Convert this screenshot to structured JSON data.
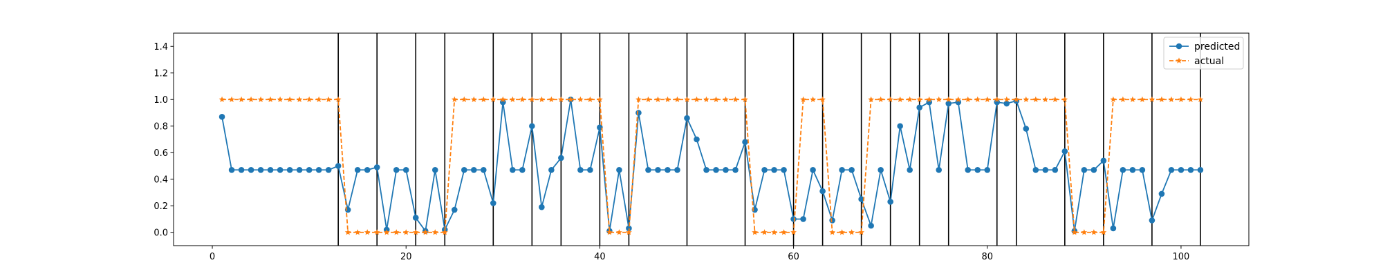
{
  "chart_data": {
    "type": "line",
    "title": "",
    "xlabel": "",
    "ylabel": "",
    "xlim": [
      -4,
      107
    ],
    "ylim": [
      -0.1,
      1.5
    ],
    "x_ticks": [
      0,
      20,
      40,
      60,
      80,
      100
    ],
    "y_ticks": [
      0.0,
      0.2,
      0.4,
      0.6,
      0.8,
      1.0,
      1.2,
      1.4
    ],
    "y_tick_labels": [
      "0.0",
      "0.2",
      "0.4",
      "0.6",
      "0.8",
      "1.0",
      "1.2",
      "1.4"
    ],
    "grid": false,
    "legend_position": "top-right",
    "vertical_lines": [
      13,
      17,
      21,
      24,
      29,
      33,
      36,
      40,
      43,
      49,
      55,
      60,
      63,
      67,
      70,
      73,
      76,
      81,
      83,
      88,
      92,
      97,
      102
    ],
    "series": [
      {
        "name": "predicted",
        "color": "#1f77b4",
        "marker": "circle",
        "line_style": "solid",
        "x": [
          1,
          2,
          3,
          4,
          5,
          6,
          7,
          8,
          9,
          10,
          11,
          12,
          13,
          14,
          15,
          16,
          17,
          18,
          19,
          20,
          21,
          22,
          23,
          24,
          25,
          26,
          27,
          28,
          29,
          30,
          31,
          32,
          33,
          34,
          35,
          36,
          37,
          38,
          39,
          40,
          41,
          42,
          43,
          44,
          45,
          46,
          47,
          48,
          49,
          50,
          51,
          52,
          53,
          54,
          55,
          56,
          57,
          58,
          59,
          60,
          61,
          62,
          63,
          64,
          65,
          66,
          67,
          68,
          69,
          70,
          71,
          72,
          73,
          74,
          75,
          76,
          77,
          78,
          79,
          80,
          81,
          82,
          83,
          84,
          85,
          86,
          87,
          88,
          89,
          90,
          91,
          92,
          93,
          94,
          95,
          96,
          97,
          98,
          99,
          100,
          101,
          102
        ],
        "values": [
          0.87,
          0.47,
          0.47,
          0.47,
          0.47,
          0.47,
          0.47,
          0.47,
          0.47,
          0.47,
          0.47,
          0.47,
          0.5,
          0.17,
          0.47,
          0.47,
          0.49,
          0.02,
          0.47,
          0.47,
          0.11,
          0.01,
          0.47,
          0.02,
          0.17,
          0.47,
          0.47,
          0.47,
          0.22,
          0.98,
          0.47,
          0.47,
          0.8,
          0.19,
          0.47,
          0.56,
          1.0,
          0.47,
          0.47,
          0.79,
          0.01,
          0.47,
          0.03,
          0.9,
          0.47,
          0.47,
          0.47,
          0.47,
          0.86,
          0.7,
          0.47,
          0.47,
          0.47,
          0.47,
          0.68,
          0.17,
          0.47,
          0.47,
          0.47,
          0.1,
          0.1,
          0.47,
          0.31,
          0.09,
          0.47,
          0.47,
          0.25,
          0.05,
          0.47,
          0.23,
          0.8,
          0.47,
          0.94,
          0.98,
          0.47,
          0.97,
          0.98,
          0.47,
          0.47,
          0.47,
          0.98,
          0.97,
          0.99,
          0.78,
          0.47,
          0.47,
          0.47,
          0.61,
          0.01,
          0.47,
          0.47,
          0.54,
          0.03,
          0.47,
          0.47,
          0.47,
          0.09,
          0.29,
          0.47,
          0.47,
          0.47,
          0.47
        ]
      },
      {
        "name": "actual",
        "color": "#ff7f0e",
        "marker": "star",
        "line_style": "dashed",
        "x": [
          1,
          2,
          3,
          4,
          5,
          6,
          7,
          8,
          9,
          10,
          11,
          12,
          13,
          14,
          15,
          16,
          17,
          18,
          19,
          20,
          21,
          22,
          23,
          24,
          25,
          26,
          27,
          28,
          29,
          30,
          31,
          32,
          33,
          34,
          35,
          36,
          37,
          38,
          39,
          40,
          41,
          42,
          43,
          44,
          45,
          46,
          47,
          48,
          49,
          50,
          51,
          52,
          53,
          54,
          55,
          56,
          57,
          58,
          59,
          60,
          61,
          62,
          63,
          64,
          65,
          66,
          67,
          68,
          69,
          70,
          71,
          72,
          73,
          74,
          75,
          76,
          77,
          78,
          79,
          80,
          81,
          82,
          83,
          84,
          85,
          86,
          87,
          88,
          89,
          90,
          91,
          92,
          93,
          94,
          95,
          96,
          97,
          98,
          99,
          100,
          101,
          102
        ],
        "values": [
          1,
          1,
          1,
          1,
          1,
          1,
          1,
          1,
          1,
          1,
          1,
          1,
          1,
          0,
          0,
          0,
          0,
          0,
          0,
          0,
          0,
          0,
          0,
          0,
          1,
          1,
          1,
          1,
          1,
          1,
          1,
          1,
          1,
          1,
          1,
          1,
          1,
          1,
          1,
          1,
          0,
          0,
          0,
          1,
          1,
          1,
          1,
          1,
          1,
          1,
          1,
          1,
          1,
          1,
          1,
          0,
          0,
          0,
          0,
          0,
          1,
          1,
          1,
          0,
          0,
          0,
          0,
          1,
          1,
          1,
          1,
          1,
          1,
          1,
          1,
          1,
          1,
          1,
          1,
          1,
          1,
          1,
          1,
          1,
          1,
          1,
          1,
          1,
          0,
          0,
          0,
          0,
          1,
          1,
          1,
          1,
          1,
          1,
          1,
          1,
          1,
          1
        ]
      }
    ]
  }
}
